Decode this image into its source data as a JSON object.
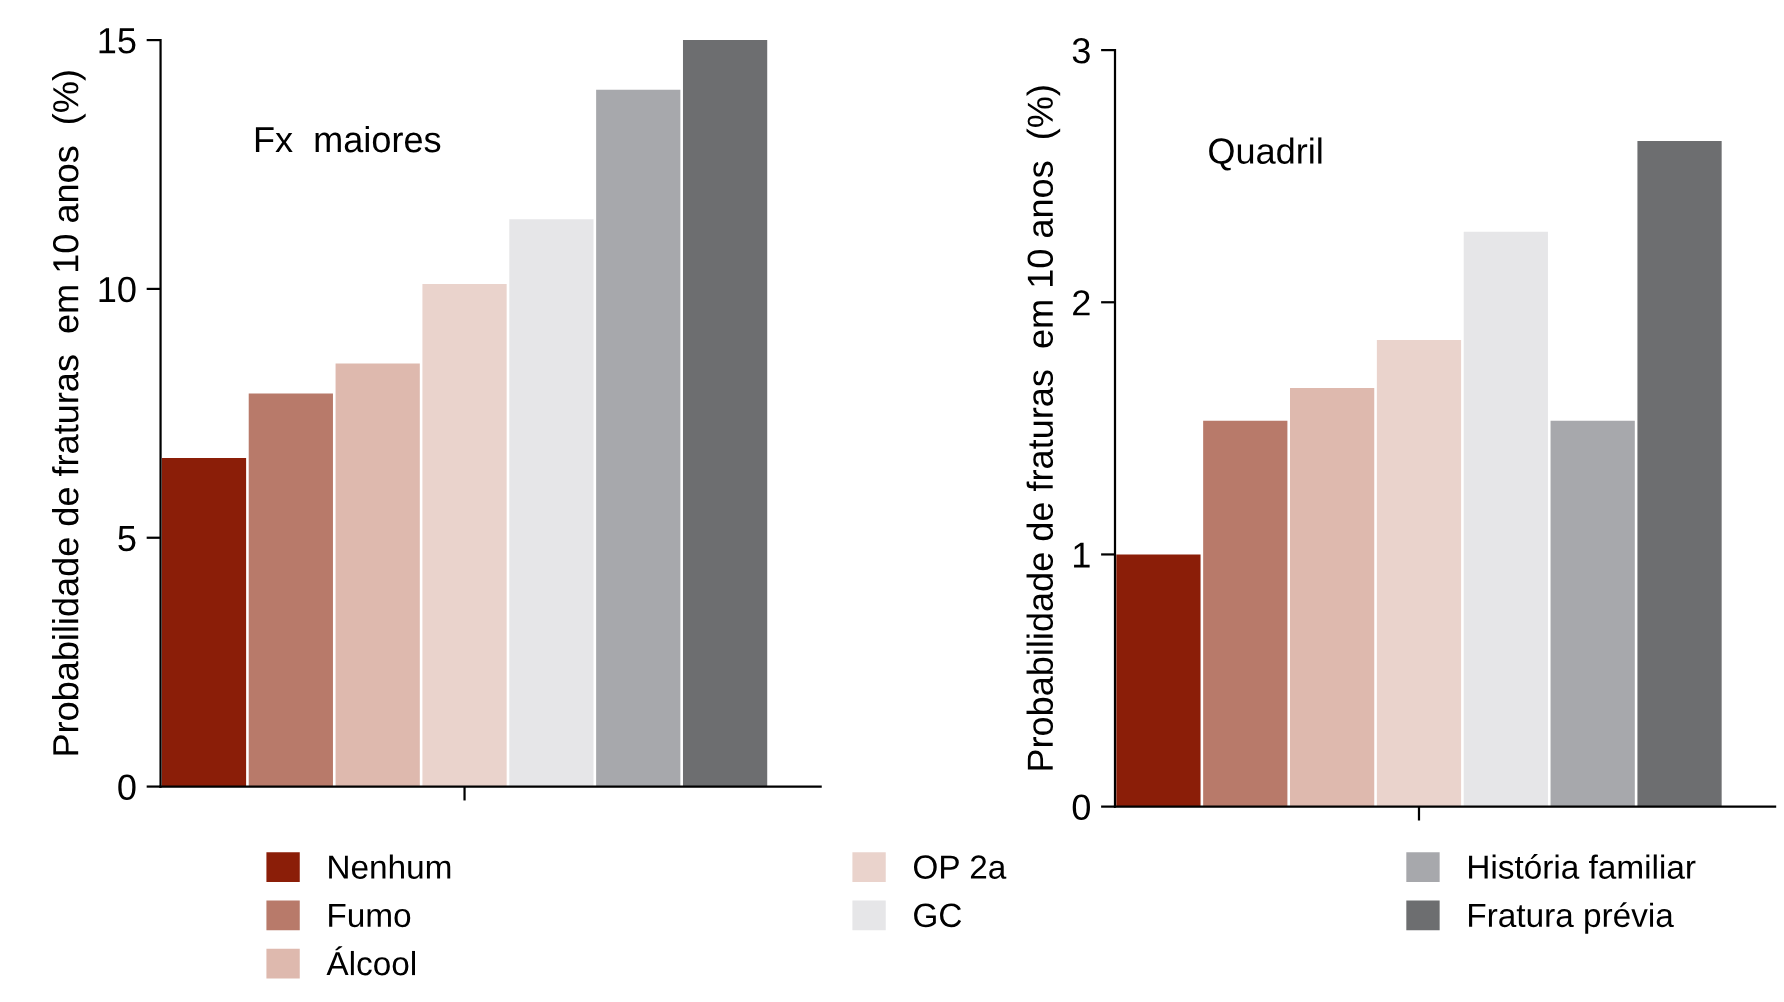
{
  "chart_data": [
    {
      "type": "bar",
      "title": "Fx  maiores",
      "ylabel": "Probabilidade de fraturas  em 10 anos  (%)",
      "categories": [
        null
      ],
      "series": [
        {
          "name": "Nenhum",
          "color": "#8b1e08",
          "values": [
            6.6
          ]
        },
        {
          "name": "Fumo",
          "color": "#b87a6a",
          "values": [
            7.9
          ]
        },
        {
          "name": "Álcool",
          "color": "#deb9ae",
          "values": [
            8.5
          ]
        },
        {
          "name": "OP 2a",
          "color": "#ead3cc",
          "values": [
            10.1
          ]
        },
        {
          "name": "GC",
          "color": "#e6e6e8",
          "values": [
            11.4
          ]
        },
        {
          "name": "História familiar",
          "color": "#a7a8ac",
          "values": [
            14.0
          ]
        },
        {
          "name": "Fratura prévia",
          "color": "#6d6e70",
          "values": [
            15.0
          ]
        }
      ],
      "ylim": [
        0,
        15
      ],
      "yticks": [
        0,
        5,
        10,
        15
      ],
      "tick_labels": "y",
      "legend": "bottom"
    },
    {
      "type": "bar",
      "title": "Quadril",
      "ylabel": "Probabilidade de fraturas  em 10 anos  (%)",
      "categories": [
        null
      ],
      "series": [
        {
          "name": "Nenhum",
          "color": "#8b1e08",
          "values": [
            1.0
          ]
        },
        {
          "name": "Fumo",
          "color": "#b87a6a",
          "values": [
            1.53
          ]
        },
        {
          "name": "Álcool",
          "color": "#deb9ae",
          "values": [
            1.66
          ]
        },
        {
          "name": "OP 2a",
          "color": "#ead3cc",
          "values": [
            1.85
          ]
        },
        {
          "name": "GC",
          "color": "#e6e6e8",
          "values": [
            2.28
          ]
        },
        {
          "name": "História familiar",
          "color": "#a7a8ac",
          "values": [
            1.53
          ]
        },
        {
          "name": "Fratura prévia",
          "color": "#6d6e70",
          "values": [
            2.64
          ]
        }
      ],
      "ylim": [
        0,
        3
      ],
      "yticks": [
        0,
        1,
        2,
        3
      ],
      "tick_labels": "y",
      "legend": "bottom"
    }
  ]
}
